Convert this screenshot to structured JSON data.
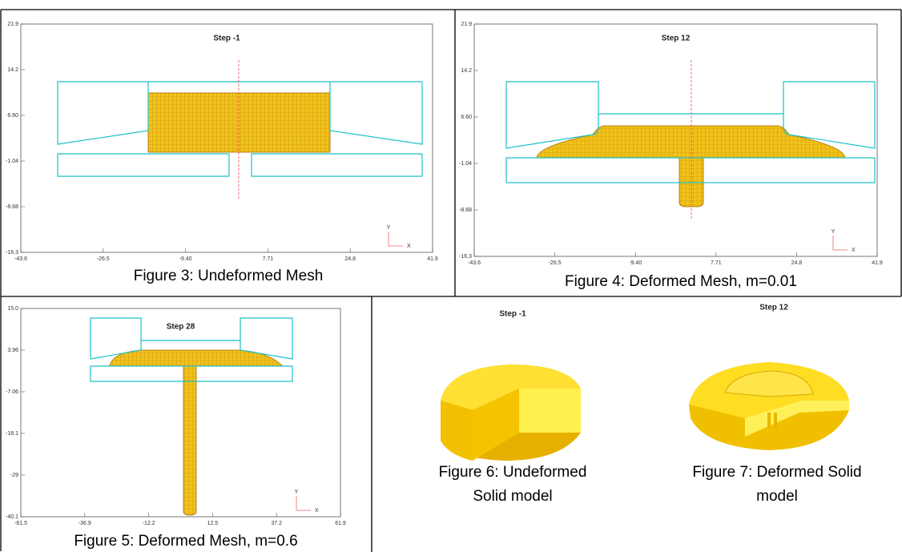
{
  "figures": [
    {
      "step": "Step  -1",
      "yticks": [
        "21.9",
        "14.2",
        "6.60",
        "-1.04",
        "-8.68",
        "-16.3"
      ],
      "xticks": [
        "-43.6",
        "-26.5",
        "-9.40",
        "7.71",
        "24.8",
        "41.9"
      ],
      "axis_y": "Y",
      "axis_x": "X",
      "caption": "Figure 3: Undeformed Mesh"
    },
    {
      "step": "Step  12",
      "yticks": [
        "21.9",
        "14.2",
        "6.60",
        "-1.04",
        "-8.68",
        "-16.3"
      ],
      "xticks": [
        "-43.6",
        "-26.5",
        "-9.40",
        "7.71",
        "24.8",
        "41.9"
      ],
      "axis_y": "Y",
      "axis_x": "X",
      "caption": "Figure 4: Deformed Mesh, m=0.01"
    },
    {
      "step": "Step  28",
      "yticks": [
        "15.0",
        "3.96",
        "-7.06",
        "-18.1",
        "-29",
        "-40.1"
      ],
      "xticks": [
        "-61.5",
        "-36.9",
        "-12.2",
        "12.5",
        "37.2",
        "61.9"
      ],
      "axis_y": "Y",
      "axis_x": "X",
      "caption": "Figure 5: Deformed Mesh, m=0.6"
    },
    {
      "step": "Step  -1",
      "caption_lines": [
        "Figure 6: Undeformed",
        "Solid model"
      ]
    },
    {
      "step": "Step  12",
      "caption_lines": [
        "Figure 7: Deformed Solid",
        "model"
      ]
    }
  ]
}
